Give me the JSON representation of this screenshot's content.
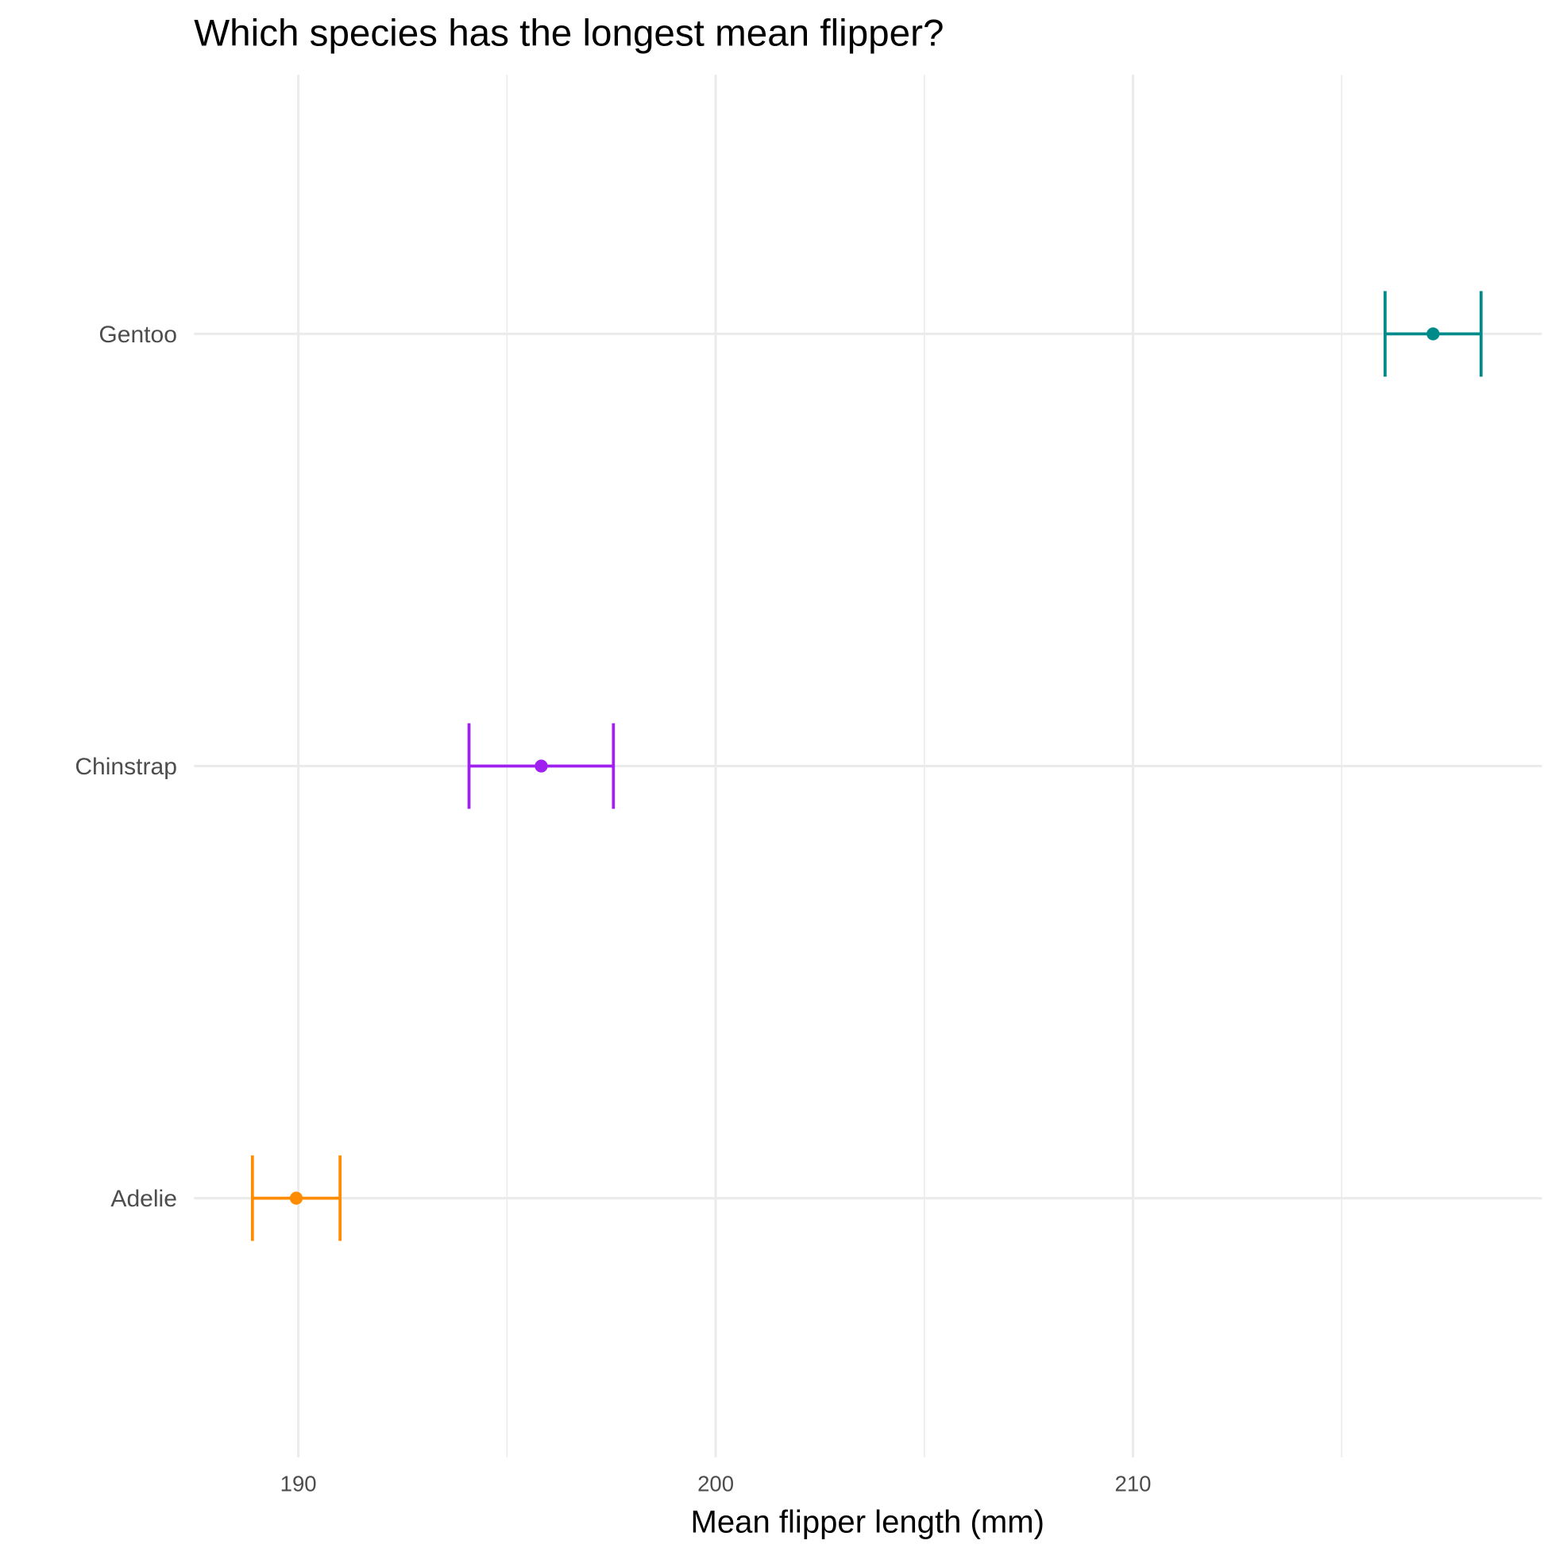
{
  "chart_data": {
    "type": "errorbar",
    "title": "Which species has the longest mean flipper?",
    "x_label": "Mean flipper length (mm)",
    "categories": [
      "Adelie",
      "Chinstrap",
      "Gentoo"
    ],
    "values": [
      189.95,
      195.82,
      217.19
    ],
    "errors": [
      1.05,
      1.73,
      1.15
    ],
    "colors": [
      "#FF8C00",
      "#A020F0",
      "#008B8B"
    ],
    "xlim": [
      187.5,
      219.8
    ],
    "xticks": [
      190,
      200,
      210
    ],
    "x_minor_grid": [
      195,
      205,
      215
    ],
    "grid": true
  }
}
